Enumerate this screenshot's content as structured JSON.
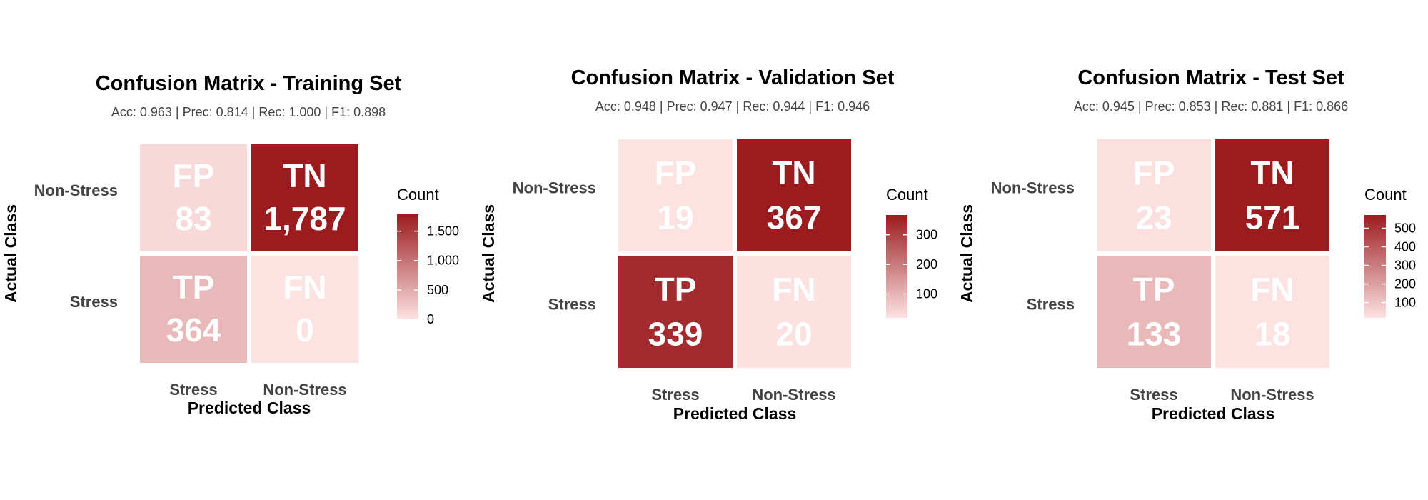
{
  "chart_data": [
    {
      "type": "heatmap",
      "title": "Confusion Matrix - Training Set",
      "subtitle": "Acc: 0.963 | Prec: 0.814 | Rec: 1.000 | F1: 0.898",
      "xlabel": "Predicted Class",
      "ylabel": "Actual Class",
      "x_categories": [
        "Stress",
        "Non-Stress"
      ],
      "y_categories": [
        "Non-Stress",
        "Stress"
      ],
      "cells": [
        {
          "row": "Non-Stress",
          "col": "Stress",
          "label": "FP",
          "value": 83,
          "value_label": "83"
        },
        {
          "row": "Non-Stress",
          "col": "Non-Stress",
          "label": "TN",
          "value": 1787,
          "value_label": "1,787"
        },
        {
          "row": "Stress",
          "col": "Stress",
          "label": "TP",
          "value": 364,
          "value_label": "364"
        },
        {
          "row": "Stress",
          "col": "Non-Stress",
          "label": "FN",
          "value": 0,
          "value_label": "0"
        }
      ],
      "legend": {
        "title": "Count",
        "range": [
          0,
          1787
        ],
        "ticks": [
          {
            "value": 0,
            "label": "0"
          },
          {
            "value": 500,
            "label": "500"
          },
          {
            "value": 1000,
            "label": "1,000"
          },
          {
            "value": 1500,
            "label": "1,500"
          }
        ]
      },
      "colors": {
        "low": "#fde2e2",
        "high": "#9b1b1f"
      }
    },
    {
      "type": "heatmap",
      "title": "Confusion Matrix - Validation Set",
      "subtitle": "Acc: 0.948 | Prec: 0.947 | Rec: 0.944 | F1: 0.946",
      "xlabel": "Predicted Class",
      "ylabel": "Actual Class",
      "x_categories": [
        "Stress",
        "Non-Stress"
      ],
      "y_categories": [
        "Non-Stress",
        "Stress"
      ],
      "cells": [
        {
          "row": "Non-Stress",
          "col": "Stress",
          "label": "FP",
          "value": 19,
          "value_label": "19"
        },
        {
          "row": "Non-Stress",
          "col": "Non-Stress",
          "label": "TN",
          "value": 367,
          "value_label": "367"
        },
        {
          "row": "Stress",
          "col": "Stress",
          "label": "TP",
          "value": 339,
          "value_label": "339"
        },
        {
          "row": "Stress",
          "col": "Non-Stress",
          "label": "FN",
          "value": 20,
          "value_label": "20"
        }
      ],
      "legend": {
        "title": "Count",
        "range": [
          19,
          367
        ],
        "ticks": [
          {
            "value": 100,
            "label": "100"
          },
          {
            "value": 200,
            "label": "200"
          },
          {
            "value": 300,
            "label": "300"
          }
        ]
      },
      "colors": {
        "low": "#fde2e2",
        "high": "#9b1b1f"
      }
    },
    {
      "type": "heatmap",
      "title": "Confusion Matrix - Test Set",
      "subtitle": "Acc: 0.945 | Prec: 0.853 | Rec: 0.881 | F1: 0.866",
      "xlabel": "Predicted Class",
      "ylabel": "Actual Class",
      "x_categories": [
        "Stress",
        "Non-Stress"
      ],
      "y_categories": [
        "Non-Stress",
        "Stress"
      ],
      "cells": [
        {
          "row": "Non-Stress",
          "col": "Stress",
          "label": "FP",
          "value": 23,
          "value_label": "23"
        },
        {
          "row": "Non-Stress",
          "col": "Non-Stress",
          "label": "TN",
          "value": 571,
          "value_label": "571"
        },
        {
          "row": "Stress",
          "col": "Stress",
          "label": "TP",
          "value": 133,
          "value_label": "133"
        },
        {
          "row": "Stress",
          "col": "Non-Stress",
          "label": "FN",
          "value": 18,
          "value_label": "18"
        }
      ],
      "legend": {
        "title": "Count",
        "range": [
          18,
          571
        ],
        "ticks": [
          {
            "value": 100,
            "label": "100"
          },
          {
            "value": 200,
            "label": "200"
          },
          {
            "value": 300,
            "label": "300"
          },
          {
            "value": 400,
            "label": "400"
          },
          {
            "value": 500,
            "label": "500"
          }
        ]
      },
      "colors": {
        "low": "#fde2e2",
        "high": "#9b1b1f"
      }
    }
  ]
}
